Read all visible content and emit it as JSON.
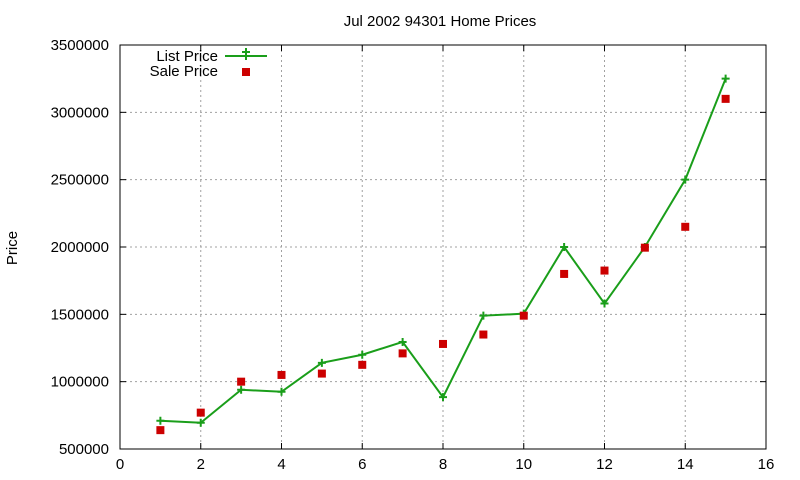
{
  "chart_data": {
    "type": "line",
    "title": "Jul 2002 94301 Home Prices",
    "xlabel": "",
    "ylabel": "Price",
    "xlim": [
      0,
      16
    ],
    "ylim": [
      500000,
      3500000
    ],
    "xticks": [
      0,
      2,
      4,
      6,
      8,
      10,
      12,
      14,
      16
    ],
    "yticks": [
      500000,
      1000000,
      1500000,
      2000000,
      2500000,
      3000000,
      3500000
    ],
    "grid": true,
    "legend_position": "top-left",
    "series": [
      {
        "name": "List Price",
        "style": "line+cross",
        "color": "#1a9e1a",
        "x": [
          1,
          2,
          3,
          4,
          5,
          6,
          7,
          8,
          9,
          10,
          11,
          12,
          13,
          14,
          15
        ],
        "values": [
          710000,
          695000,
          940000,
          925000,
          1140000,
          1200000,
          1295000,
          885000,
          1490000,
          1505000,
          2000000,
          1580000,
          2000000,
          2500000,
          3250000
        ]
      },
      {
        "name": "Sale Price",
        "style": "square-points",
        "color": "#cc0000",
        "x": [
          1,
          2,
          3,
          4,
          5,
          6,
          7,
          8,
          9,
          10,
          11,
          12,
          13,
          14,
          15
        ],
        "values": [
          640000,
          770000,
          1000000,
          1050000,
          1060000,
          1125000,
          1210000,
          1280000,
          1350000,
          1490000,
          1800000,
          1825000,
          1995000,
          2150000,
          3100000
        ]
      }
    ]
  }
}
